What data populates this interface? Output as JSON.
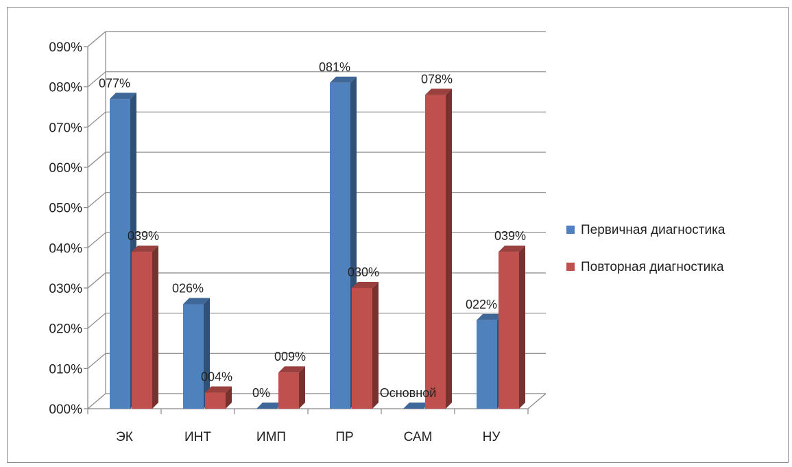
{
  "chart_data": {
    "type": "bar",
    "categories": [
      "ЭК",
      "ИНТ",
      "ИМП",
      "ПР",
      "САМ",
      "НУ"
    ],
    "series": [
      {
        "name": "Первичная диагностика",
        "values": [
          77,
          26,
          0,
          81,
          0,
          22
        ],
        "labels": [
          "077%",
          "026%",
          "0%",
          "081%",
          "Основной",
          "022%"
        ],
        "color": "#4f81bd"
      },
      {
        "name": "Повторная диагностика",
        "values": [
          39,
          4,
          9,
          30,
          78,
          39
        ],
        "labels": [
          "039%",
          "004%",
          "009%",
          "030%",
          "078%",
          "039%"
        ],
        "color": "#c0504d"
      }
    ],
    "ylim": [
      0,
      90
    ],
    "yticks": [
      "000%",
      "010%",
      "020%",
      "030%",
      "040%",
      "050%",
      "060%",
      "070%",
      "080%",
      "090%"
    ],
    "grid": true,
    "legend_position": "right"
  }
}
